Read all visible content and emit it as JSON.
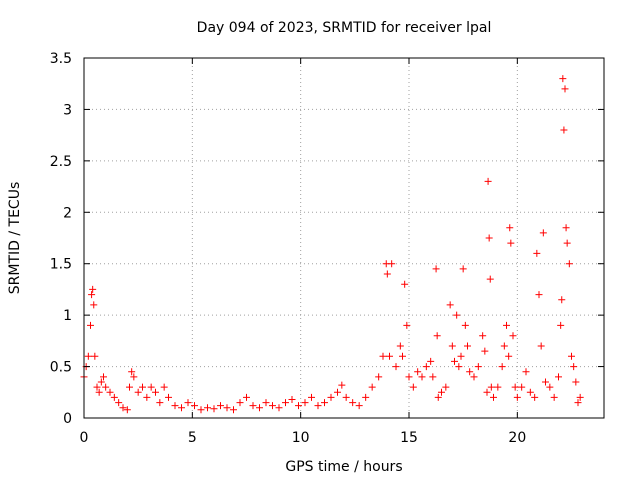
{
  "chart_data": {
    "type": "scatter",
    "title": "Day 094 of 2023, SRMTID for receiver lpal",
    "xlabel": "GPS time / hours",
    "ylabel": "SRMTID / TECUs",
    "xlim": [
      0,
      24
    ],
    "ylim": [
      0,
      3.5
    ],
    "grid": true,
    "marker": "+",
    "colors": {
      "series": "#ff0000",
      "grid": "#a0a0a0",
      "axes": "#000000"
    },
    "x_ticks": [
      {
        "value": 0,
        "label": "0"
      },
      {
        "value": 5,
        "label": "5"
      },
      {
        "value": 10,
        "label": "10"
      },
      {
        "value": 15,
        "label": "15"
      },
      {
        "value": 20,
        "label": "20"
      }
    ],
    "y_ticks": [
      {
        "value": 0,
        "label": "0"
      },
      {
        "value": 0.5,
        "label": "0.5"
      },
      {
        "value": 1,
        "label": "1"
      },
      {
        "value": 1.5,
        "label": "1.5"
      },
      {
        "value": 2,
        "label": "2"
      },
      {
        "value": 2.5,
        "label": "2.5"
      },
      {
        "value": 3,
        "label": "3"
      },
      {
        "value": 3.5,
        "label": "3.5"
      }
    ],
    "series": [
      {
        "name": "SRMTID",
        "x": [
          0,
          0.1,
          0.2,
          0.3,
          0.35,
          0.4,
          0.45,
          0.5,
          0.6,
          0.7,
          0.8,
          0.9,
          1.0,
          1.2,
          1.4,
          1.6,
          1.8,
          2.0,
          2.1,
          2.2,
          2.3,
          2.5,
          2.7,
          2.9,
          3.1,
          3.3,
          3.5,
          3.7,
          3.9,
          4.2,
          4.5,
          4.8,
          5.1,
          5.4,
          5.7,
          6.0,
          6.3,
          6.6,
          6.9,
          7.2,
          7.5,
          7.8,
          8.1,
          8.4,
          8.7,
          9.0,
          9.3,
          9.6,
          9.9,
          10.2,
          10.5,
          10.8,
          11.1,
          11.4,
          11.7,
          11.9,
          12.1,
          12.4,
          12.7,
          13.0,
          13.3,
          13.6,
          13.8,
          13.95,
          14.0,
          14.1,
          14.2,
          14.4,
          14.6,
          14.7,
          14.8,
          14.9,
          15.0,
          15.2,
          15.4,
          15.6,
          15.8,
          16.0,
          16.1,
          16.25,
          16.3,
          16.35,
          16.5,
          16.7,
          16.9,
          17.0,
          17.1,
          17.2,
          17.3,
          17.4,
          17.5,
          17.6,
          17.7,
          17.8,
          18.0,
          18.2,
          18.4,
          18.5,
          18.6,
          18.65,
          18.7,
          18.75,
          18.8,
          18.9,
          19.1,
          19.3,
          19.4,
          19.5,
          19.6,
          19.65,
          19.7,
          19.8,
          19.9,
          20.0,
          20.2,
          20.4,
          20.6,
          20.8,
          20.9,
          21.0,
          21.1,
          21.2,
          21.3,
          21.5,
          21.7,
          21.9,
          22.0,
          22.05,
          22.1,
          22.15,
          22.2,
          22.25,
          22.3,
          22.4,
          22.5,
          22.6,
          22.7,
          22.8,
          22.9
        ],
        "y": [
          0.4,
          0.5,
          0.6,
          0.9,
          1.2,
          1.25,
          1.1,
          0.6,
          0.3,
          0.25,
          0.35,
          0.4,
          0.3,
          0.25,
          0.2,
          0.15,
          0.1,
          0.08,
          0.3,
          0.45,
          0.4,
          0.25,
          0.3,
          0.2,
          0.3,
          0.25,
          0.15,
          0.3,
          0.2,
          0.12,
          0.1,
          0.15,
          0.12,
          0.08,
          0.1,
          0.09,
          0.12,
          0.1,
          0.08,
          0.15,
          0.2,
          0.12,
          0.1,
          0.15,
          0.12,
          0.1,
          0.15,
          0.18,
          0.12,
          0.15,
          0.2,
          0.12,
          0.15,
          0.2,
          0.25,
          0.32,
          0.2,
          0.15,
          0.12,
          0.2,
          0.3,
          0.4,
          0.6,
          1.5,
          1.4,
          0.6,
          1.5,
          0.5,
          0.7,
          0.6,
          1.3,
          0.9,
          0.4,
          0.3,
          0.45,
          0.4,
          0.5,
          0.55,
          0.4,
          1.45,
          0.8,
          0.2,
          0.25,
          0.3,
          1.1,
          0.7,
          0.55,
          1.0,
          0.5,
          0.6,
          1.45,
          0.9,
          0.7,
          0.45,
          0.4,
          0.5,
          0.8,
          0.65,
          0.25,
          2.3,
          1.75,
          1.35,
          0.3,
          0.2,
          0.3,
          0.5,
          0.7,
          0.9,
          0.6,
          1.85,
          1.7,
          0.8,
          0.3,
          0.2,
          0.3,
          0.45,
          0.25,
          0.2,
          1.6,
          1.2,
          0.7,
          1.8,
          0.35,
          0.3,
          0.2,
          0.4,
          0.9,
          1.15,
          3.3,
          2.8,
          3.2,
          1.85,
          1.7,
          1.5,
          0.6,
          0.5,
          0.35,
          0.15,
          0.2
        ]
      }
    ]
  }
}
